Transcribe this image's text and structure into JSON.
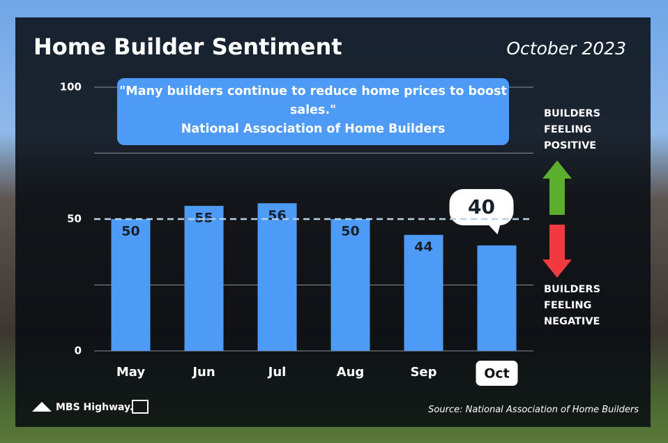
{
  "chart_data": {
    "type": "bar",
    "title": "Home Builder Sentiment",
    "subtitle": "October 2023",
    "categories": [
      "May",
      "Jun",
      "Jul",
      "Aug",
      "Sep",
      "Oct"
    ],
    "values": [
      50,
      55,
      56,
      50,
      44,
      40
    ],
    "color": "#4d9bf7",
    "ylim": [
      0,
      100
    ],
    "yticks": [
      0,
      50,
      100
    ],
    "minor_gridlines": [
      25,
      75
    ],
    "reference_line": 50,
    "grid": true,
    "highlight_last": true,
    "quote": "\"Many builders continue to reduce home prices to boost sales.\"",
    "quote_source": "National Association of Home Builders",
    "positive_label": "BUILDERS FEELING POSITIVE",
    "negative_label": "BUILDERS FEELING NEGATIVE",
    "source": "Source: National Association of Home Builders",
    "brand": "MBS Highway."
  }
}
